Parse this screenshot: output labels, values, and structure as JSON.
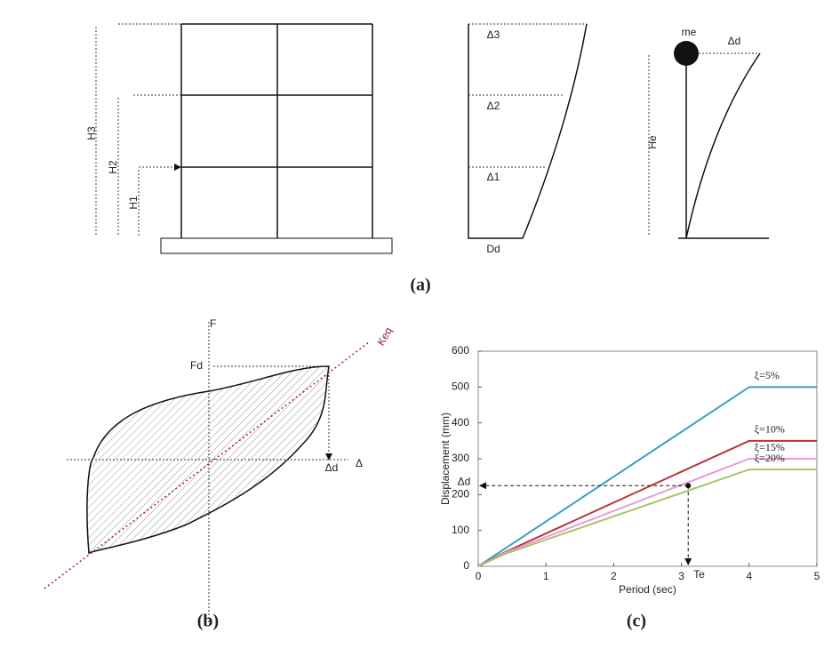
{
  "diagram_a": {
    "heights": [
      "H3",
      "H2",
      "H1"
    ],
    "drifts": [
      "Δ3",
      "Δ2",
      "Δ1"
    ],
    "base": "Dd",
    "mass": "me",
    "displacement": "Δd",
    "height": "He",
    "caption": "(a)"
  },
  "diagram_b": {
    "force": "F",
    "force_design": "Fd",
    "displacement_design": "Δd",
    "displacement": "Δ",
    "stiffness": "Keq",
    "caption": "(b)"
  },
  "chart_data": {
    "type": "line",
    "caption": "(c)",
    "x_label": "Period (sec)",
    "y_label": "Displacement (mm)",
    "x": [
      0,
      0.4,
      4,
      5
    ],
    "series": [
      {
        "name": "ξ=5%",
        "color": "#3a9ec2",
        "values": [
          0,
          50,
          500,
          500
        ]
      },
      {
        "name": "ξ=10%",
        "color": "#b5343a",
        "values": [
          0,
          40,
          350,
          350
        ]
      },
      {
        "name": "ξ=15%",
        "color": "#e89bd8",
        "values": [
          0,
          38,
          300,
          300
        ]
      },
      {
        "name": "ξ=20%",
        "color": "#a6c46a",
        "values": [
          0,
          35,
          270,
          270
        ]
      }
    ],
    "annotations": [
      {
        "text": "Δd",
        "y": 225
      },
      {
        "text": "Te",
        "x": 3.1
      }
    ],
    "xlim": [
      0,
      5
    ],
    "ylim": [
      0,
      600
    ],
    "xticks": [
      0,
      1,
      2,
      3,
      4,
      5
    ],
    "yticks": [
      0,
      100,
      200,
      300,
      400,
      500,
      600
    ]
  }
}
